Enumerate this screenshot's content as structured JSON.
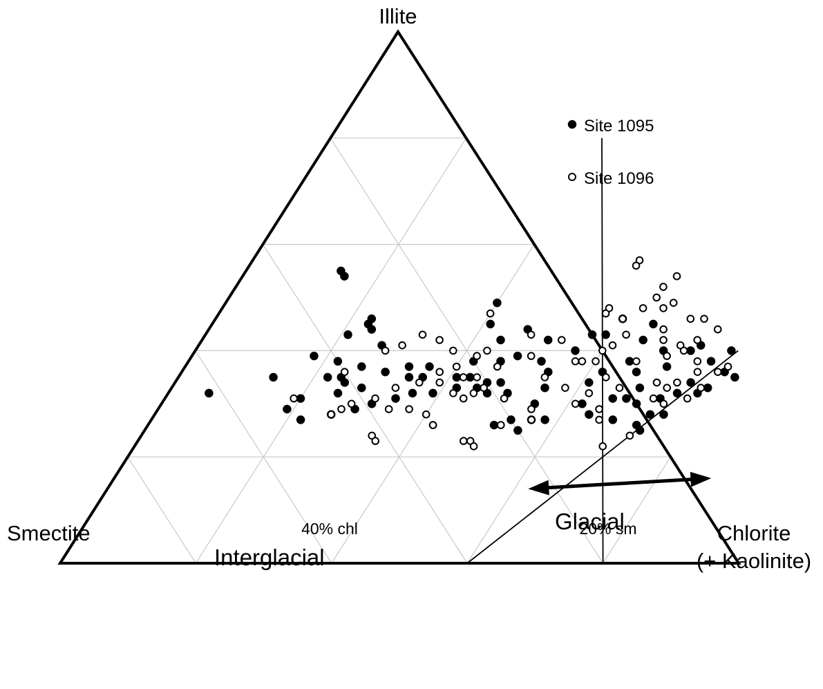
{
  "chart_data": {
    "type": "scatter",
    "subtype": "ternary",
    "corners": {
      "top": "Illite",
      "left": "Smectite",
      "right_line1": "Chlorite",
      "right_line2": "(+ Kaolinite)"
    },
    "base_annotations": [
      "40% chl",
      "20% sm"
    ],
    "region_labels": {
      "interglacial": "Interglacial",
      "glacial": "Glacial"
    },
    "legend": {
      "placement": "top-right",
      "entries": [
        "Site 1095",
        "Site 1096"
      ]
    },
    "grid": true,
    "grid_step_percent": 20,
    "units": "percent",
    "series": [
      {
        "name": "Site 1095",
        "marker": "filled",
        "points": [
          [
            40,
            49
          ],
          [
            14,
            55
          ],
          [
            15,
            54
          ],
          [
            23,
            46
          ],
          [
            23,
            45
          ],
          [
            24,
            44
          ],
          [
            21,
            43
          ],
          [
            27,
            41
          ],
          [
            18,
            39
          ],
          [
            14,
            35
          ],
          [
            6,
            32
          ],
          [
            22,
            38
          ],
          [
            26,
            37
          ],
          [
            24,
            35
          ],
          [
            30,
            36
          ],
          [
            33,
            37
          ],
          [
            36,
            37
          ],
          [
            42,
            38
          ],
          [
            46,
            38
          ],
          [
            48,
            39
          ],
          [
            51,
            42
          ],
          [
            57,
            43
          ],
          [
            59,
            43
          ],
          [
            56,
            40
          ],
          [
            52,
            38
          ],
          [
            54,
            36
          ],
          [
            48,
            34
          ],
          [
            46,
            34
          ],
          [
            43,
            35
          ],
          [
            41,
            35
          ],
          [
            36,
            35
          ],
          [
            34,
            35
          ],
          [
            28,
            33
          ],
          [
            25,
            34
          ],
          [
            22,
            35
          ],
          [
            25,
            32
          ],
          [
            20,
            31
          ],
          [
            19,
            29
          ],
          [
            22,
            27
          ],
          [
            26,
            28
          ],
          [
            29,
            29
          ],
          [
            31,
            30
          ],
          [
            34,
            31
          ],
          [
            36,
            32
          ],
          [
            39,
            32
          ],
          [
            42,
            33
          ],
          [
            45,
            33
          ],
          [
            47,
            32
          ],
          [
            50,
            32
          ],
          [
            55,
            30
          ],
          [
            62,
            30
          ],
          [
            64,
            28
          ],
          [
            58,
            27
          ],
          [
            56,
            27
          ],
          [
            53,
            27
          ],
          [
            51,
            26
          ],
          [
            55,
            25
          ],
          [
            68,
            27
          ],
          [
            73,
            31
          ],
          [
            75,
            32
          ],
          [
            76,
            34
          ],
          [
            71,
            37
          ],
          [
            77,
            38
          ],
          [
            80,
            36
          ],
          [
            82,
            35
          ],
          [
            79,
            33
          ],
          [
            78,
            32
          ],
          [
            75,
            28
          ],
          [
            73,
            28
          ],
          [
            68,
            31
          ],
          [
            66,
            31
          ],
          [
            69,
            33
          ],
          [
            67,
            36
          ],
          [
            65,
            38
          ],
          [
            62,
            36
          ],
          [
            61,
            34
          ],
          [
            69,
            40
          ],
          [
            65,
            42
          ],
          [
            73,
            40
          ],
          [
            79,
            40
          ],
          [
            74,
            41
          ],
          [
            65,
            45
          ],
          [
            60,
            46
          ],
          [
            41,
            45
          ],
          [
            47,
            44
          ],
          [
            44,
            42
          ],
          [
            55,
            33
          ],
          [
            70,
            30
          ],
          [
            72,
            26
          ],
          [
            73,
            25
          ]
        ]
      },
      {
        "name": "Site 1096",
        "marker": "open",
        "points": [
          [
            57,
            57
          ],
          [
            57,
            56
          ],
          [
            64,
            54
          ],
          [
            63,
            52
          ],
          [
            63,
            50
          ],
          [
            62,
            48
          ],
          [
            65,
            48
          ],
          [
            66,
            49
          ],
          [
            57,
            48
          ],
          [
            57,
            47
          ],
          [
            60,
            46
          ],
          [
            70,
            46
          ],
          [
            72,
            46
          ],
          [
            75,
            44
          ],
          [
            73,
            42
          ],
          [
            67,
            44
          ],
          [
            68,
            42
          ],
          [
            71,
            41
          ],
          [
            70,
            39
          ],
          [
            66,
            38
          ],
          [
            75,
            38
          ],
          [
            76,
            36
          ],
          [
            71,
            34
          ],
          [
            73,
            33
          ],
          [
            78,
            33
          ],
          [
            77,
            31
          ],
          [
            74,
            30
          ],
          [
            72,
            31
          ],
          [
            66,
            33
          ],
          [
            63,
            35
          ],
          [
            60,
            38
          ],
          [
            58,
            38
          ],
          [
            54,
            35
          ],
          [
            58,
            33
          ],
          [
            62,
            32
          ],
          [
            61,
            30
          ],
          [
            65,
            29
          ],
          [
            66,
            27
          ],
          [
            72,
            24
          ],
          [
            69,
            22
          ],
          [
            55,
            29
          ],
          [
            56,
            27
          ],
          [
            52,
            26
          ],
          [
            50,
            31
          ],
          [
            46,
            33
          ],
          [
            44,
            35
          ],
          [
            42,
            35
          ],
          [
            40,
            37
          ],
          [
            38,
            36
          ],
          [
            39,
            34
          ],
          [
            42,
            32
          ],
          [
            44,
            31
          ],
          [
            45,
            32
          ],
          [
            36,
            34
          ],
          [
            33,
            33
          ],
          [
            31,
            31
          ],
          [
            34,
            29
          ],
          [
            37,
            29
          ],
          [
            40,
            28
          ],
          [
            42,
            26
          ],
          [
            28,
            30
          ],
          [
            27,
            29
          ],
          [
            26,
            28
          ],
          [
            34,
            24
          ],
          [
            35,
            23
          ],
          [
            48,
            23
          ],
          [
            49,
            23
          ],
          [
            50,
            22
          ],
          [
            42,
            26
          ],
          [
            38,
            40
          ],
          [
            35,
            42
          ],
          [
            32,
            43
          ],
          [
            30,
            41
          ],
          [
            28,
            40
          ],
          [
            24,
            36
          ],
          [
            19,
            31
          ],
          [
            43,
            40
          ],
          [
            42,
            39
          ],
          [
            48,
            43
          ],
          [
            53,
            42
          ],
          [
            50,
            39
          ],
          [
            46,
            37
          ],
          [
            57,
            38
          ],
          [
            60,
            40
          ],
          [
            62,
            43
          ],
          [
            79,
            36
          ],
          [
            80,
            37
          ],
          [
            74,
            34
          ],
          [
            61,
            41
          ],
          [
            72,
            40
          ],
          [
            40,
            47
          ]
        ]
      }
    ],
    "lines": [
      {
        "name": "interglacial-boundary",
        "from": [
          60,
          0
        ],
        "to": [
          80,
          40
        ]
      },
      {
        "name": "glacial-boundary",
        "from": [
          80,
          0
        ],
        "to": [
          40,
          80
        ]
      }
    ],
    "arrow": {
      "from": [
        62,
        14
      ],
      "to": [
        88,
        16
      ],
      "double_headed": true
    }
  }
}
